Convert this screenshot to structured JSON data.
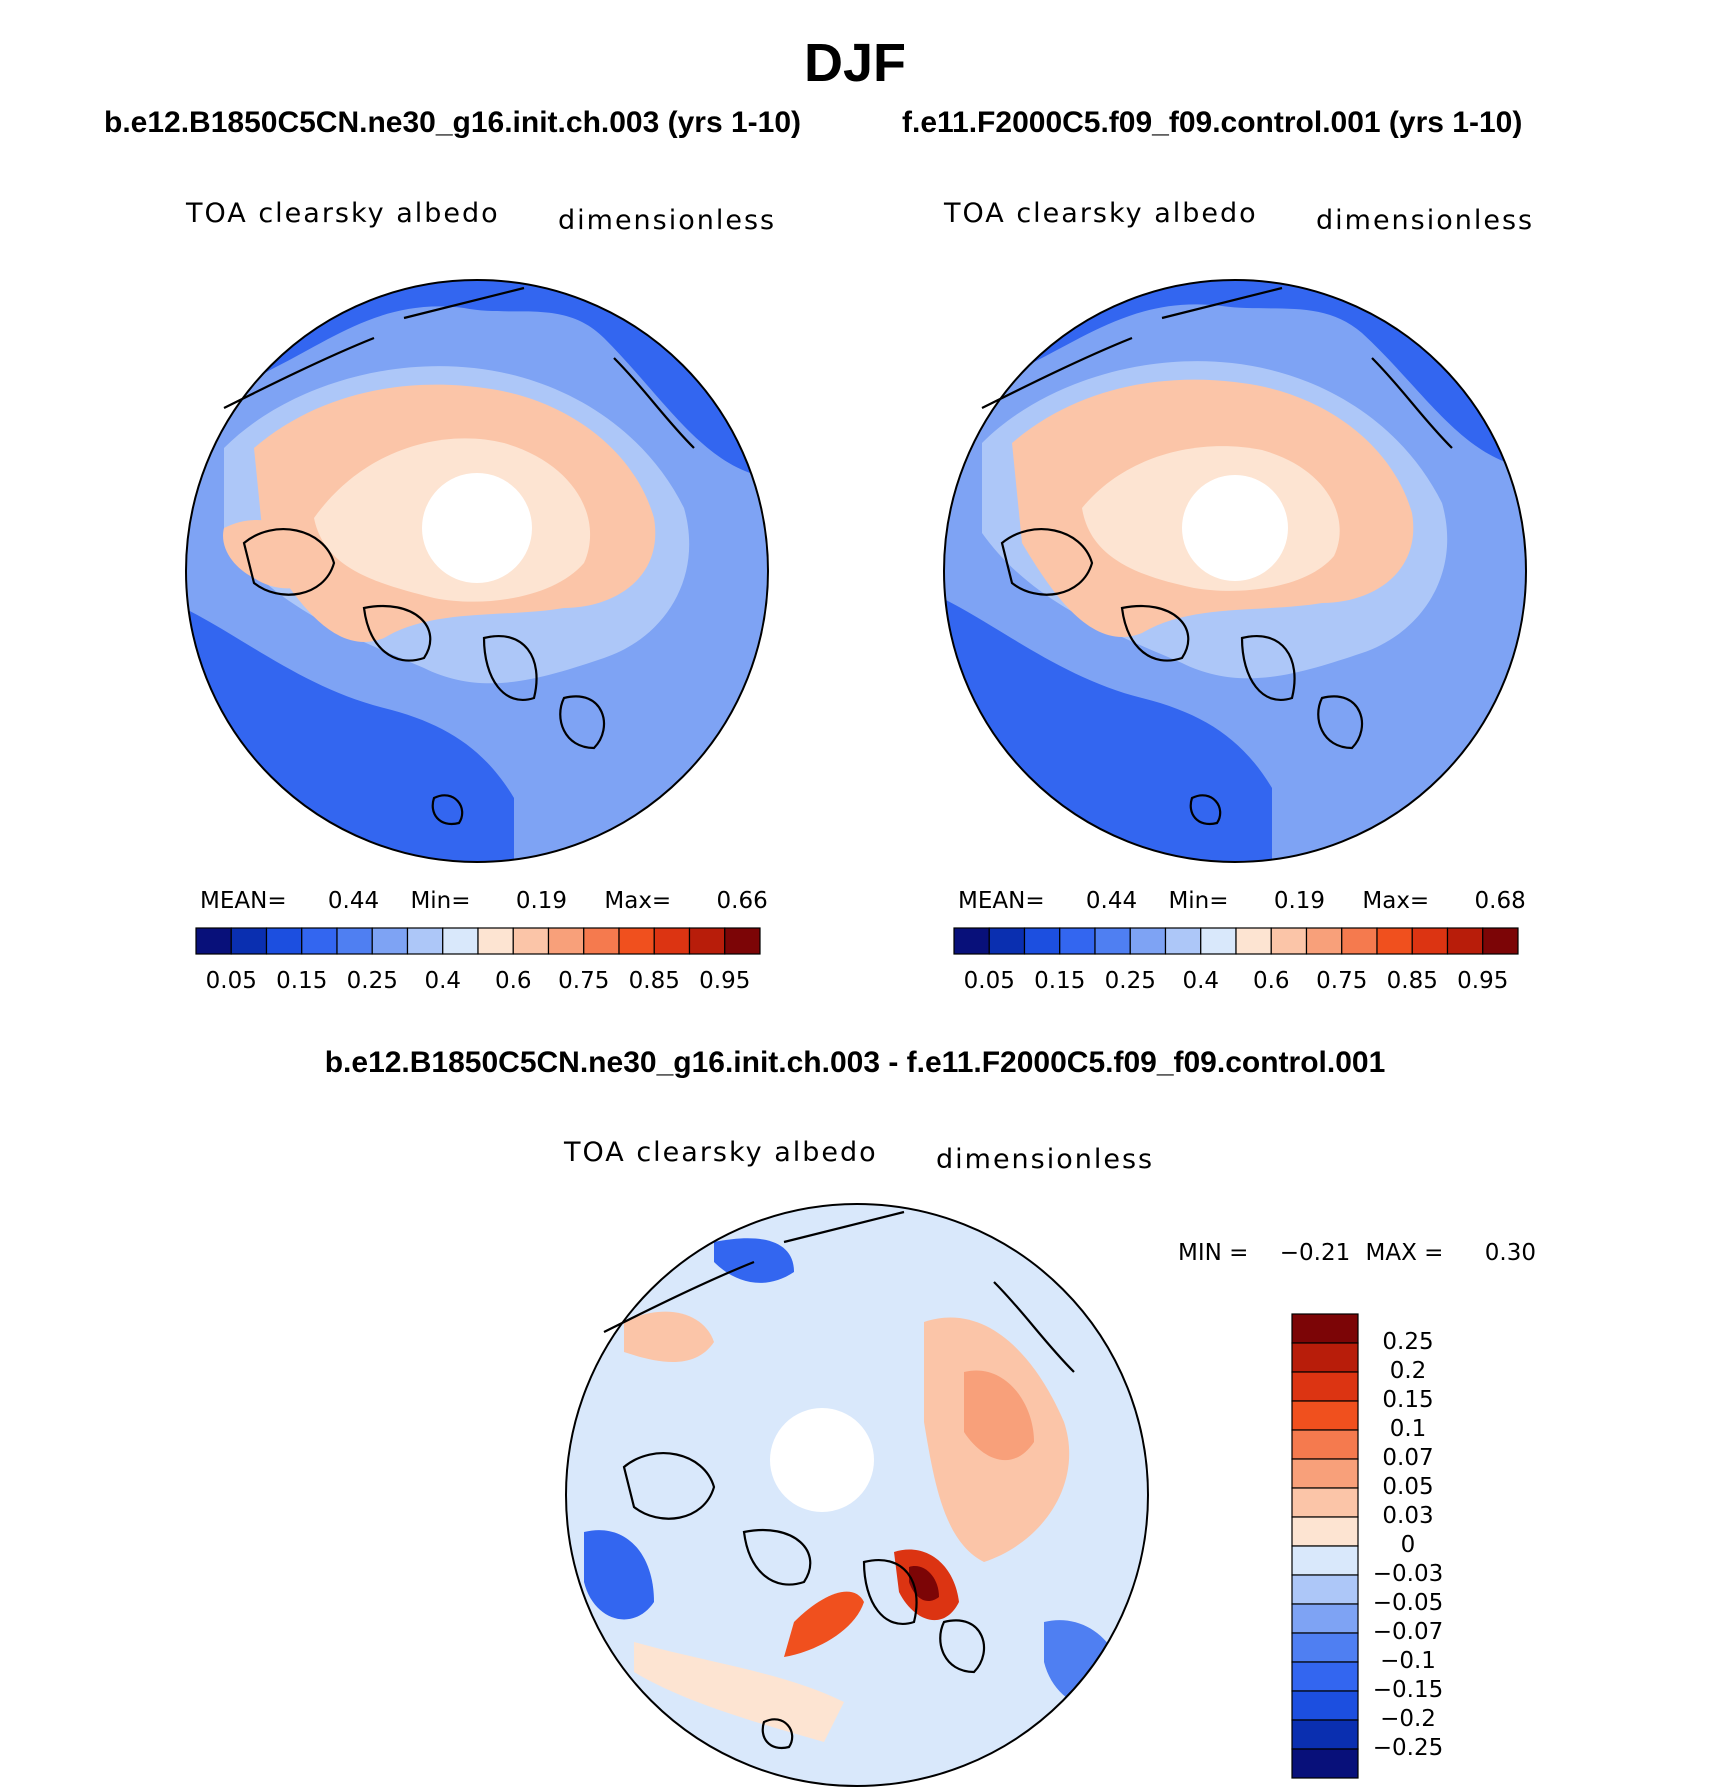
{
  "title": "DJF",
  "panels": [
    {
      "case": "b.e12.B1850C5CN.ne30_g16.init.ch.003 (yrs 1-10)",
      "variable": "TOA clearsky albedo",
      "units": "dimensionless",
      "stats": {
        "mean_label": "MEAN=",
        "mean": "0.44",
        "min_label": "Min=",
        "min": "0.19",
        "max_label": "Max=",
        "max": "0.66"
      }
    },
    {
      "case": "f.e11.F2000C5.f09_f09.control.001 (yrs 1-10)",
      "variable": "TOA clearsky albedo",
      "units": "dimensionless",
      "stats": {
        "mean_label": "MEAN=",
        "mean": "0.44",
        "min_label": "Min=",
        "min": "0.19",
        "max_label": "Max=",
        "max": "0.68"
      }
    }
  ],
  "diff": {
    "title": "b.e12.B1850C5CN.ne30_g16.init.ch.003 - f.e11.F2000C5.f09_f09.control.001",
    "variable": "TOA clearsky albedo",
    "units": "dimensionless",
    "stats": {
      "min_label": "MIN =",
      "min": "−0.21",
      "max_label": "MAX =",
      "max": "0.30"
    }
  },
  "colorbar_abs": {
    "colors": [
      "#08107a",
      "#0a2fb0",
      "#1c4fe0",
      "#3366f0",
      "#4f7ff2",
      "#7ea3f4",
      "#adc7f8",
      "#d9e8fb",
      "#fde4d2",
      "#fbc5a8",
      "#f8a07a",
      "#f57a4e",
      "#f0501e",
      "#dc3412",
      "#b81d0a",
      "#7c0506"
    ],
    "labels": [
      "0.05",
      "0.15",
      "0.25",
      "0.4",
      "0.6",
      "0.75",
      "0.85",
      "0.95"
    ]
  },
  "colorbar_diff": {
    "colors": [
      "#7c0506",
      "#b81d0a",
      "#dc3412",
      "#f0501e",
      "#f57a4e",
      "#f8a07a",
      "#fbc5a8",
      "#fde4d2",
      "#d9e8fb",
      "#adc7f8",
      "#7ea3f4",
      "#4f7ff2",
      "#3366f0",
      "#1c4fe0",
      "#0a2fb0",
      "#08107a"
    ],
    "labels": [
      "0.25",
      "0.2",
      "0.15",
      "0.1",
      "0.07",
      "0.05",
      "0.03",
      "0",
      "−0.03",
      "−0.05",
      "−0.07",
      "−0.1",
      "−0.15",
      "−0.2",
      "−0.25"
    ]
  }
}
